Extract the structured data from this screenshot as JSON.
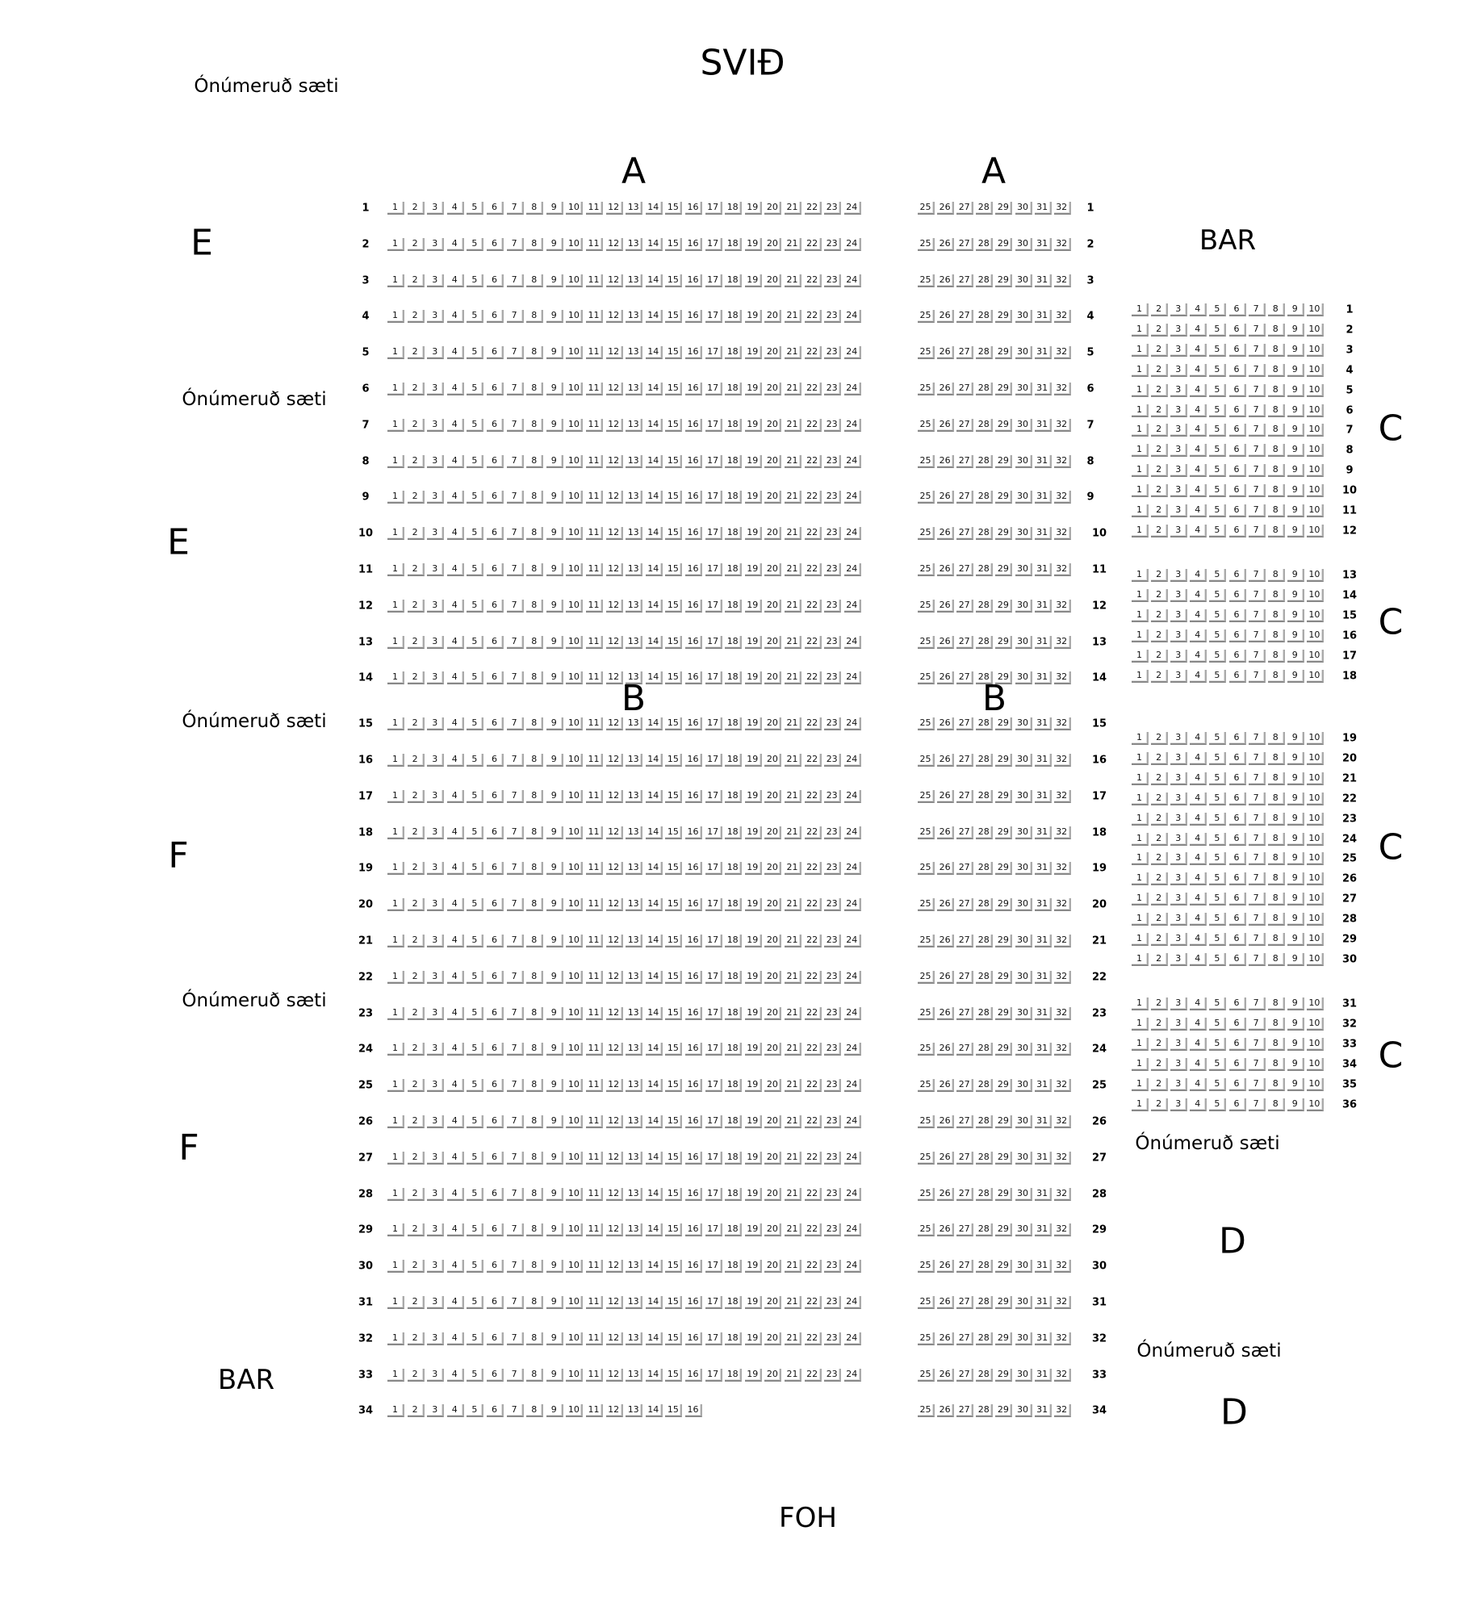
{
  "stage_label": "SVIÐ",
  "foh_label": "FOH",
  "unnumbered_label": "Ónúmeruð sæti",
  "labels": {
    "section_a": "A",
    "section_b": "B",
    "section_c": "C",
    "section_d": "D",
    "section_e": "E",
    "section_f": "F",
    "bar": "BAR"
  },
  "main_block": {
    "rows": [
      {
        "row": "1",
        "left": [
          1,
          24
        ],
        "right": [
          25,
          32
        ]
      },
      {
        "row": "2",
        "left": [
          1,
          24
        ],
        "right": [
          25,
          32
        ]
      },
      {
        "row": "3",
        "left": [
          1,
          24
        ],
        "right": [
          25,
          32
        ]
      },
      {
        "row": "4",
        "left": [
          1,
          24
        ],
        "right": [
          25,
          32
        ]
      },
      {
        "row": "5",
        "left": [
          1,
          24
        ],
        "right": [
          25,
          32
        ]
      },
      {
        "row": "6",
        "left": [
          1,
          24
        ],
        "right": [
          25,
          32
        ]
      },
      {
        "row": "7",
        "left": [
          1,
          24
        ],
        "right": [
          25,
          32
        ]
      },
      {
        "row": "8",
        "left": [
          1,
          24
        ],
        "right": [
          25,
          32
        ]
      },
      {
        "row": "9",
        "left": [
          1,
          24
        ],
        "right": [
          25,
          32
        ]
      },
      {
        "row": "10",
        "left": [
          1,
          24
        ],
        "right": [
          25,
          32
        ]
      },
      {
        "row": "11",
        "left": [
          1,
          24
        ],
        "right": [
          25,
          32
        ]
      },
      {
        "row": "12",
        "left": [
          1,
          24
        ],
        "right": [
          25,
          32
        ]
      },
      {
        "row": "13",
        "left": [
          1,
          24
        ],
        "right": [
          25,
          32
        ]
      },
      {
        "row": "14",
        "left": [
          1,
          24
        ],
        "right": [
          25,
          32
        ]
      },
      {
        "row": "15",
        "left": [
          1,
          24
        ],
        "right": [
          25,
          32
        ]
      },
      {
        "row": "16",
        "left": [
          1,
          24
        ],
        "right": [
          25,
          32
        ]
      },
      {
        "row": "17",
        "left": [
          1,
          24
        ],
        "right": [
          25,
          32
        ]
      },
      {
        "row": "18",
        "left": [
          1,
          24
        ],
        "right": [
          25,
          32
        ]
      },
      {
        "row": "19",
        "left": [
          1,
          24
        ],
        "right": [
          25,
          32
        ]
      },
      {
        "row": "20",
        "left": [
          1,
          24
        ],
        "right": [
          25,
          32
        ]
      },
      {
        "row": "21",
        "left": [
          1,
          24
        ],
        "right": [
          25,
          32
        ]
      },
      {
        "row": "22",
        "left": [
          1,
          24
        ],
        "right": [
          25,
          32
        ]
      },
      {
        "row": "23",
        "left": [
          1,
          24
        ],
        "right": [
          25,
          32
        ]
      },
      {
        "row": "24",
        "left": [
          1,
          24
        ],
        "right": [
          25,
          32
        ]
      },
      {
        "row": "25",
        "left": [
          1,
          24
        ],
        "right": [
          25,
          32
        ]
      },
      {
        "row": "26",
        "left": [
          1,
          24
        ],
        "right": [
          25,
          32
        ]
      },
      {
        "row": "27",
        "left": [
          1,
          24
        ],
        "right": [
          25,
          32
        ]
      },
      {
        "row": "28",
        "left": [
          1,
          24
        ],
        "right": [
          25,
          32
        ]
      },
      {
        "row": "29",
        "left": [
          1,
          24
        ],
        "right": [
          25,
          32
        ]
      },
      {
        "row": "30",
        "left": [
          1,
          24
        ],
        "right": [
          25,
          32
        ]
      },
      {
        "row": "31",
        "left": [
          1,
          24
        ],
        "right": [
          25,
          32
        ]
      },
      {
        "row": "32",
        "left": [
          1,
          24
        ],
        "right": [
          25,
          32
        ]
      },
      {
        "row": "33",
        "left": [
          1,
          24
        ],
        "right": [
          25,
          32
        ]
      },
      {
        "row": "34",
        "left": [
          1,
          16
        ],
        "right": [
          25,
          32
        ]
      }
    ]
  },
  "c_block": {
    "seats": [
      1,
      10
    ],
    "groups": [
      {
        "rows": [
          1,
          12
        ]
      },
      {
        "rows": [
          13,
          18
        ]
      },
      {
        "rows": [
          19,
          30
        ]
      },
      {
        "rows": [
          31,
          36
        ]
      }
    ]
  }
}
